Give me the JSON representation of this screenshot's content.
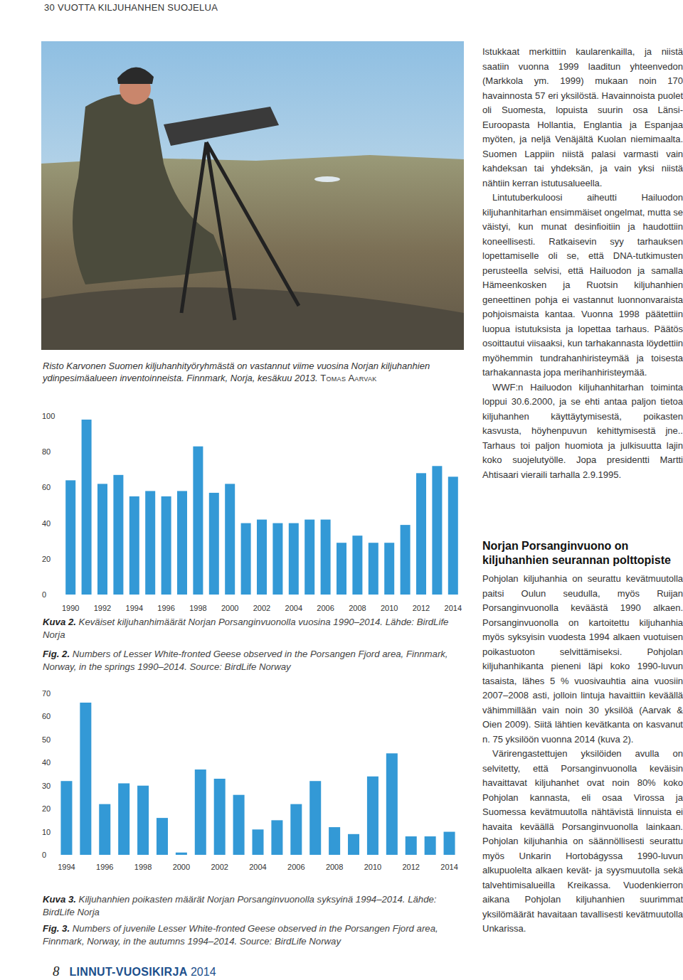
{
  "header": {
    "running_title": "30 VUOTTA KILJUHANHEN SUOJELUA"
  },
  "photo": {
    "caption": "Risto Karvonen Suomen kiljuhanhityöryhmästä on vastannut viime vuosina Norjan kiljuhanhien ydinpesimäalueen inventoinneista. Finnmark, Norja, kesäkuu 2013.",
    "credit": "Tomas Aarvak"
  },
  "chart_data": [
    {
      "type": "bar",
      "categories": [
        "1990",
        null,
        "1992",
        null,
        "1994",
        null,
        "1996",
        null,
        "1998",
        null,
        "2000",
        null,
        "2002",
        null,
        "2004",
        null,
        "2006",
        null,
        "2008",
        null,
        "2010",
        null,
        "2012",
        null,
        "2014"
      ],
      "values": [
        64,
        98,
        62,
        67,
        55,
        58,
        55,
        58,
        83,
        57,
        62,
        40,
        42,
        40,
        40,
        42,
        42,
        29,
        33,
        29,
        29,
        39,
        68,
        72,
        66
      ],
      "color": "#3399d6",
      "ylim": [
        0,
        100
      ],
      "yticks": [
        0,
        20,
        40,
        60,
        80,
        100
      ],
      "grid": false
    },
    {
      "type": "bar",
      "categories": [
        "1994",
        null,
        "1996",
        null,
        "1998",
        null,
        "2000",
        null,
        "2002",
        null,
        "2004",
        null,
        "2006",
        null,
        "2008",
        null,
        "2010",
        null,
        "2012",
        null,
        "2014"
      ],
      "values": [
        32,
        66,
        22,
        31,
        30,
        16,
        1,
        37,
        33,
        26,
        11,
        15,
        22,
        32,
        12,
        9,
        34,
        44,
        8,
        8,
        10
      ],
      "color": "#3399d6",
      "ylim": [
        0,
        70
      ],
      "yticks": [
        0,
        10,
        20,
        30,
        40,
        50,
        60,
        70
      ],
      "grid": false
    }
  ],
  "captions": [
    {
      "label": "Kuva 2.",
      "text": "Keväiset kiljuhanhimäärät Norjan Porsanginvuonolla vuosina 1990–2014. Lähde: BirdLife Norja"
    },
    {
      "label": "Fig. 2.",
      "text": "Numbers of Lesser White-fronted Geese observed in the Porsangen Fjord area, Finnmark, Norway, in the springs 1990–2014. Source: BirdLife Norway"
    },
    {
      "label": "Kuva 3.",
      "text": "Kiljuhanhien poikasten määrät Norjan Porsanginvuonolla syksyinä 1994–2014. Lähde: BirdLife Norja"
    },
    {
      "label": "Fig. 3.",
      "text": "Numbers of juvenile Lesser White-fronted Geese observed in the Porsangen Fjord area, Finnmark, Norway, in the autumns 1994–2014. Source: BirdLife Norway"
    }
  ],
  "article": {
    "paragraphs_1": [
      "Istukkaat merkittiin kaularenkailla, ja niistä saatiin vuonna 1999 laaditun yhteenvedon (Markkola ym. 1999) mukaan noin 170 havainnosta 57 eri yksilöstä. Havainnoista puolet oli Suomesta, lopuista suurin osa Länsi-Euroopasta Hollantia, Englantia ja Espanjaa myöten, ja neljä Venäjältä Kuolan niemimaalta. Suomen Lappiin niistä palasi varmasti vain kahdeksan tai yhdeksän, ja vain yksi niistä nähtiin kerran istutusalueella.",
      "Lintutuberkuloosi aiheutti Hailuodon kiljuhanhitarhan ensimmäiset ongelmat, mutta se väistyi, kun munat desinfioitiin ja haudottiin koneellisesti. Ratkaisevin syy tarhauksen lopettamiselle oli se, että DNA-tutkimusten perusteella selvisi, että Hailuodon ja samalla Hämeenkosken ja Ruotsin kiljuhanhien geneettinen pohja ei vastannut luonnonvaraista pohjoismaista kantaa. Vuonna 1998 päätettiin luopua istutuksista ja lopettaa tarhaus. Päätös osoittautui viisaaksi, kun tarhakannasta löydettiin myöhemmin tundrahanhiristeymää ja toisesta tarhakannasta jopa merihanhiristeymää.",
      "WWF:n Hailuodon kiljuhanhitarhan toiminta loppui 30.6.2000, ja se ehti antaa paljon tietoa kiljuhanhen käyttäytymisestä, poikasten kasvusta, höyhenpuvun kehittymisestä jne.. Tarhaus toi paljon huomiota ja julkisuutta lajin koko suojelutyölle. Jopa presidentti Martti Ahtisaari vieraili tarhalla 2.9.1995."
    ],
    "heading": "Norjan Porsanginvuono on kiljuhanhien seurannan polttopiste",
    "paragraphs_2": [
      "Pohjolan kiljuhanhia on seurattu kevätmuutolla paitsi Oulun seudulla, myös Ruijan Porsanginvuonolla keväästä 1990 alkaen. Porsanginvuonolla on kartoitettu kiljuhanhia myös syksyisin vuodesta 1994 alkaen vuotuisen poikastuoton selvittämiseksi. Pohjolan kiljuhanhikanta pieneni läpi koko 1990-luvun tasaista, lähes 5 % vuosivauhtia aina vuosiin 2007–2008 asti, jolloin lintuja havaittiin keväällä vähimmillään vain noin 30 yksilöä (Aarvak & Oien 2009). Siitä lähtien kevätkanta on kasvanut n. 75 yksilöön vuonna 2014 (kuva 2).",
      "Värirengastettujen yksilöiden avulla on selvitetty, että Porsanginvuonolla keväisin havaittavat kiljuhanhet ovat noin 80% koko Pohjolan kannasta, eli osaa Virossa ja Suomessa kevätmuutolla nähtävistä linnuista ei havaita keväällä Porsanginvuonolla lainkaan. Pohjolan kiljuhanhia on säännöllisesti seurattu myös Unkarin Hortobágyssa 1990-luvun alkupuolelta alkaen kevät- ja syysmuutolla sekä talvehtimisalueilla Kreikassa. Vuodenkierron aikana Pohjolan kiljuhanhien suurimmat yksilömäärät havaitaan tavallisesti kevätmuutolla Unkarissa."
    ]
  },
  "footer": {
    "page_number": "8",
    "publication": "LINNUT-VUOSIKIRJA",
    "year": "2014"
  }
}
